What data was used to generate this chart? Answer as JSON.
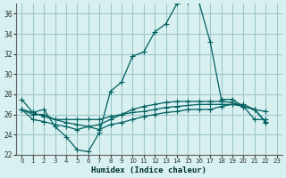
{
  "xlabel": "Humidex (Indice chaleur)",
  "ylabel": "",
  "bg_color": "#d8f0f0",
  "grid_color": "#a0c8c8",
  "line_color": "#006060",
  "xlim": [
    -0.5,
    23.5
  ],
  "ylim": [
    22,
    37
  ],
  "yticks": [
    22,
    24,
    26,
    28,
    30,
    32,
    34,
    36
  ],
  "xticks": [
    0,
    1,
    2,
    3,
    4,
    5,
    6,
    7,
    8,
    9,
    10,
    11,
    12,
    13,
    14,
    15,
    16,
    17,
    18,
    19,
    20,
    21,
    22,
    23
  ],
  "series": [
    [
      27.5,
      26.2,
      26.5,
      24.8,
      23.8,
      22.5,
      22.3,
      24.2,
      28.3,
      29.2,
      31.8,
      32.2,
      34.2,
      35.0,
      37.0,
      37.2,
      37.1,
      33.2,
      27.5,
      27.5,
      26.8,
      25.5,
      25.5
    ],
    [
      26.5,
      26.0,
      26.0,
      25.5,
      25.5,
      25.5,
      25.5,
      25.5,
      25.8,
      26.0,
      26.2,
      26.3,
      26.5,
      26.7,
      26.8,
      26.9,
      27.0,
      27.0,
      27.0,
      27.0,
      26.8,
      26.5,
      26.3
    ],
    [
      26.5,
      26.2,
      25.8,
      25.5,
      25.2,
      25.0,
      24.8,
      24.5,
      25.0,
      25.2,
      25.5,
      25.8,
      26.0,
      26.2,
      26.3,
      26.5,
      26.5,
      26.5,
      26.8,
      27.0,
      27.0,
      26.5,
      25.3
    ],
    [
      26.5,
      25.5,
      25.3,
      25.0,
      24.8,
      24.5,
      24.8,
      25.0,
      25.5,
      26.0,
      26.5,
      26.8,
      27.0,
      27.2,
      27.3,
      27.3,
      27.3,
      27.3,
      27.3,
      27.2,
      26.8,
      26.5,
      25.2
    ]
  ]
}
